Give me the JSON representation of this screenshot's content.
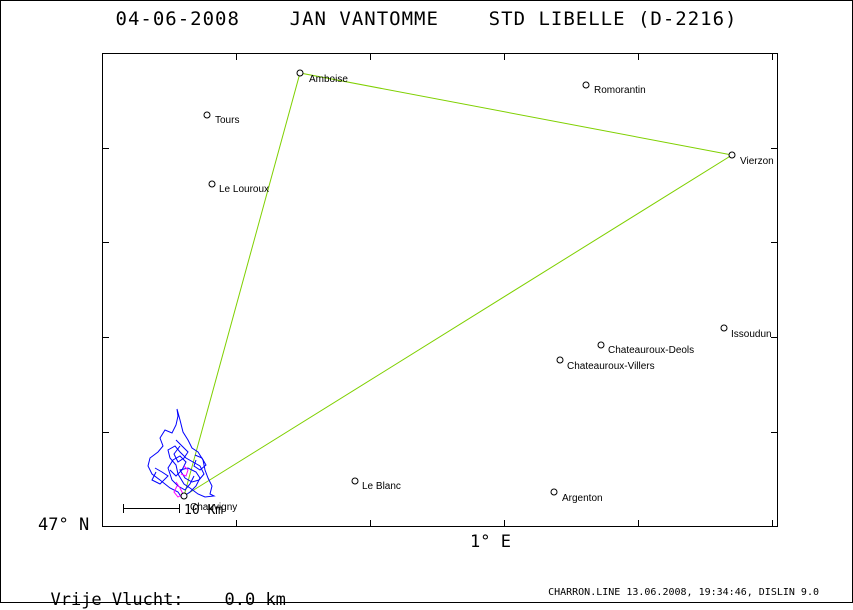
{
  "title": "04-06-2008    JAN VANTOMME    STD LIBELLE (D-2216)",
  "axes": {
    "lat_label": "47° N",
    "lon_label": "1° E"
  },
  "footer": {
    "distance_label": "Vrije Vlucht:",
    "distance_value": "0.0 km",
    "credit": "CHARRON.LINE 13.06.2008, 19:34:46, DISLIN 9.0"
  },
  "scale_bar": {
    "label": "10 Km"
  },
  "colors": {
    "task": "#7fd000",
    "track": "#0000ff",
    "track_accent": "#ff00ff",
    "frame": "#000000"
  },
  "places": [
    {
      "id": "amboise",
      "name": "Amboise",
      "turnpoint": true
    },
    {
      "id": "romorantin",
      "name": "Romorantin",
      "turnpoint": false
    },
    {
      "id": "tours",
      "name": "Tours",
      "turnpoint": false
    },
    {
      "id": "vierzon",
      "name": "Vierzon",
      "turnpoint": true
    },
    {
      "id": "le-louroux",
      "name": "Le Louroux",
      "turnpoint": false
    },
    {
      "id": "issoudun",
      "name": "Issoudun",
      "turnpoint": false
    },
    {
      "id": "chateauroux-deols",
      "name": "Chateauroux-Deols",
      "turnpoint": false
    },
    {
      "id": "chateauroux-villers",
      "name": "Chateauroux-Villers",
      "turnpoint": false
    },
    {
      "id": "le-blanc",
      "name": "Le Blanc",
      "turnpoint": false
    },
    {
      "id": "argenton",
      "name": "Argenton",
      "turnpoint": false
    },
    {
      "id": "chauvigny",
      "name": "Chauvigny",
      "turnpoint": true
    }
  ]
}
